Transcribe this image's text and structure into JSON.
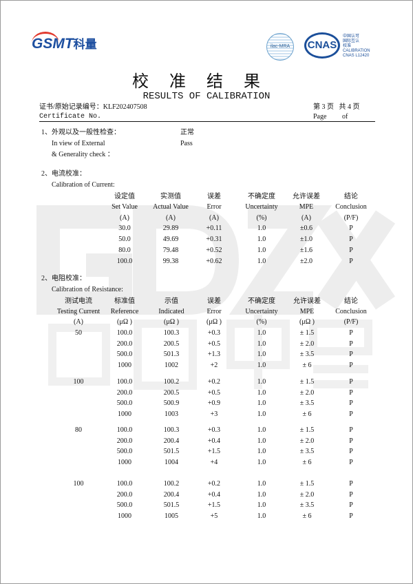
{
  "header": {
    "logo_text": "GSMT科量",
    "ilac_text": "ilac-MRA",
    "cnas_text": "CNAS",
    "cnas_lines": [
      "中国认可",
      "国际互认",
      "校准",
      "CALIBRATION",
      "CNAS L12420"
    ],
    "title_cn": "校准结果",
    "title_en": "RESULTS OF CALIBRATION",
    "cert_label_cn": "证书/原始记录编号：KLF202407508",
    "cert_label_en": "Certificate No.",
    "page_cn": "第 3 页   共 4 页",
    "page_en": "Page         of"
  },
  "watermark": {
    "large": "GDZX",
    "cn": "国电中星",
    "repeat": "GSMT科量"
  },
  "section1": {
    "title_cn": "1、外观以及一般性检查：",
    "title_en_1": "In view of External",
    "title_en_2": "& Generality check ：",
    "result_cn": "正常",
    "result_en": "Pass"
  },
  "section2": {
    "title_cn": "2、电流校准：",
    "title_en": "Calibration of Current:",
    "headers_cn": [
      "设定值",
      "实测值",
      "误差",
      "不确定度",
      "允许误差",
      "结论"
    ],
    "headers_en": [
      "Set Value",
      "Actual Value",
      "Error",
      "Uncertainty",
      "MPE",
      "Conclusion"
    ],
    "units": [
      "(A)",
      "(A)",
      "(A)",
      "(%)",
      "(A)",
      "(P/F)"
    ],
    "rows": [
      [
        "30.0",
        "29.89",
        "+0.11",
        "1.0",
        "±0.6",
        "P"
      ],
      [
        "50.0",
        "49.69",
        "+0.31",
        "1.0",
        "±1.0",
        "P"
      ],
      [
        "80.0",
        "79.48",
        "+0.52",
        "1.0",
        "±1.6",
        "P"
      ],
      [
        "100.0",
        "99.38",
        "+0.62",
        "1.0",
        "±2.0",
        "P"
      ]
    ]
  },
  "section3": {
    "title_cn": "2、电阻校准：",
    "title_en": "Calibration of Resistance:",
    "headers_cn": [
      "测试电流",
      "标准值",
      "示值",
      "误差",
      "不确定度",
      "允许误差",
      "结论"
    ],
    "headers_en": [
      "Testing Current",
      "Reference",
      "Indicated",
      "Error",
      "Uncertainty",
      "MPE",
      "Conclusion"
    ],
    "units": [
      "(A)",
      "(μΩ )",
      "(μΩ )",
      "(μΩ )",
      "(%)",
      "(μΩ )",
      "(P/F)"
    ],
    "groups": [
      {
        "current": "50",
        "rows": [
          [
            "100.0",
            "100.3",
            "+0.3",
            "1.0",
            "± 1.5",
            "P"
          ],
          [
            "200.0",
            "200.5",
            "+0.5",
            "1.0",
            "± 2.0",
            "P"
          ],
          [
            "500.0",
            "501.3",
            "+1.3",
            "1.0",
            "± 3.5",
            "P"
          ],
          [
            "1000",
            "1002",
            "+2",
            "1.0",
            "± 6",
            "P"
          ]
        ]
      },
      {
        "current": "100",
        "rows": [
          [
            "100.0",
            "100.2",
            "+0.2",
            "1.0",
            "± 1.5",
            "P"
          ],
          [
            "200.0",
            "200.5",
            "+0.5",
            "1.0",
            "± 2.0",
            "P"
          ],
          [
            "500.0",
            "500.9",
            "+0.9",
            "1.0",
            "± 3.5",
            "P"
          ],
          [
            "1000",
            "1003",
            "+3",
            "1.0",
            "± 6",
            "P"
          ]
        ]
      },
      {
        "current": "80",
        "rows": [
          [
            "100.0",
            "100.3",
            "+0.3",
            "1.0",
            "± 1.5",
            "P"
          ],
          [
            "200.0",
            "200.4",
            "+0.4",
            "1.0",
            "± 2.0",
            "P"
          ],
          [
            "500.0",
            "501.5",
            "+1.5",
            "1.0",
            "± 3.5",
            "P"
          ],
          [
            "1000",
            "1004",
            "+4",
            "1.0",
            "± 6",
            "P"
          ]
        ]
      },
      {
        "current": "100",
        "rows": [
          [
            "100.0",
            "100.2",
            "+0.2",
            "1.0",
            "± 1.5",
            "P"
          ],
          [
            "200.0",
            "200.4",
            "+0.4",
            "1.0",
            "± 2.0",
            "P"
          ],
          [
            "500.0",
            "501.5",
            "+1.5",
            "1.0",
            "± 3.5",
            "P"
          ],
          [
            "1000",
            "1005",
            "+5",
            "1.0",
            "± 6",
            "P"
          ]
        ]
      }
    ]
  }
}
